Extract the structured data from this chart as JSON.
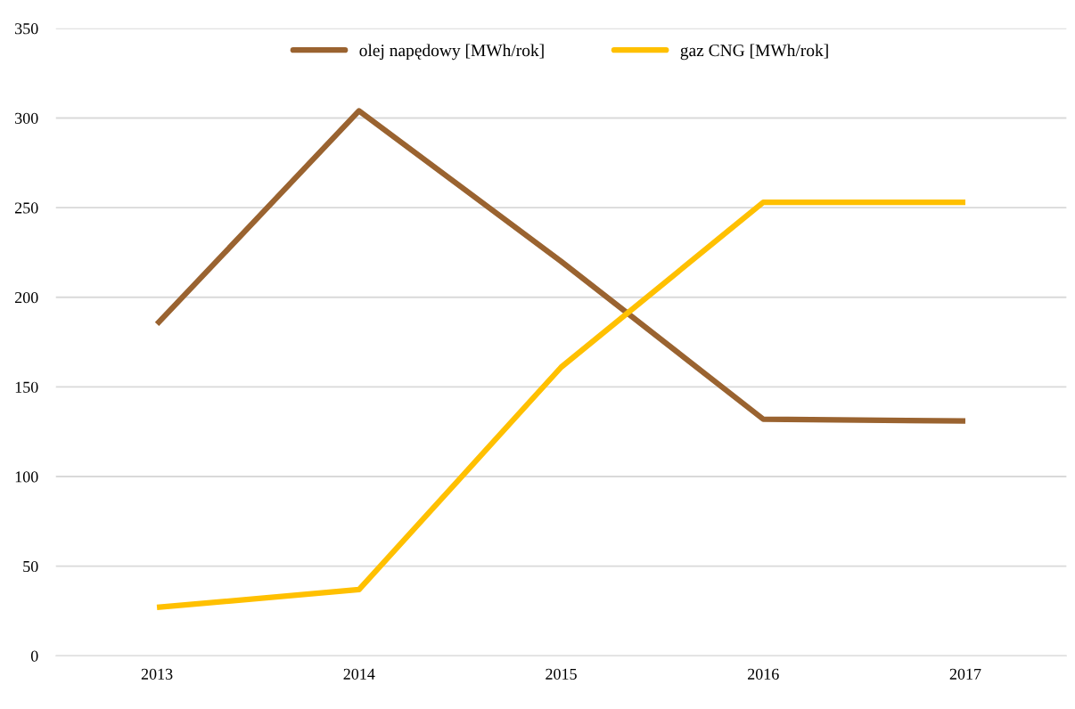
{
  "chart_data": {
    "type": "line",
    "categories": [
      "2013",
      "2014",
      "2015",
      "2016",
      "2017"
    ],
    "series": [
      {
        "name": "olej napędowy [MWh/rok]",
        "color": "#9a6330",
        "values": [
          185,
          304,
          220,
          132,
          131
        ]
      },
      {
        "name": "gaz CNG [MWh/rok]",
        "color": "#ffc000",
        "values": [
          27,
          37,
          161,
          253,
          253
        ]
      }
    ],
    "ylim": [
      0,
      350
    ],
    "yticks": [
      0,
      50,
      100,
      150,
      200,
      250,
      300,
      350
    ],
    "grid": "y",
    "legend": "top",
    "marker": "none",
    "line_style": "solid"
  }
}
